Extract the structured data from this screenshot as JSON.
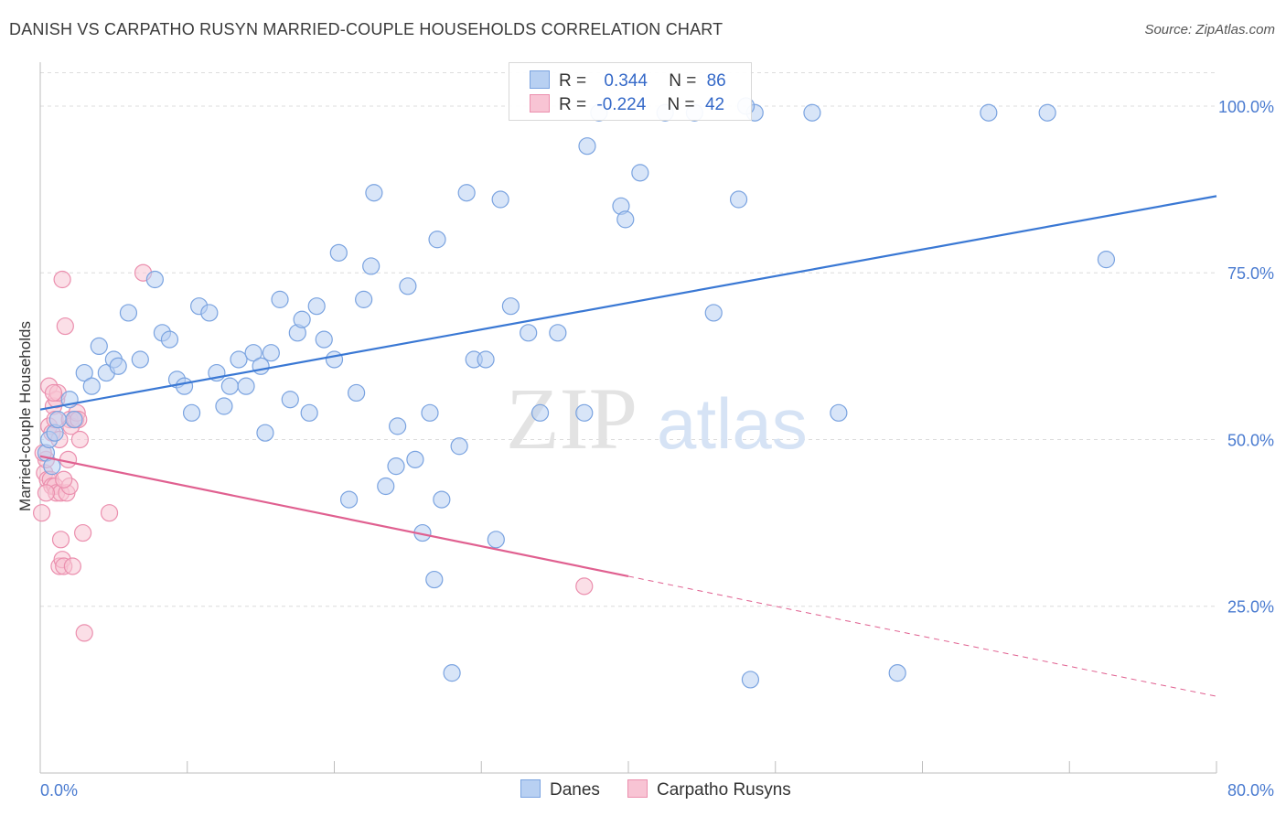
{
  "header": {
    "title": "DANISH VS CARPATHO RUSYN MARRIED-COUPLE HOUSEHOLDS CORRELATION CHART",
    "source": "Source: ZipAtlas.com"
  },
  "watermark": {
    "zip": "ZIP",
    "atlas": "atlas"
  },
  "legend": {
    "rows": [
      {
        "r_label": "R =",
        "r_value": "0.344",
        "n_label": "N =",
        "n_value": "86"
      },
      {
        "r_label": "R =",
        "r_value": "-0.224",
        "n_label": "N =",
        "n_value": "42"
      }
    ]
  },
  "bottom_legend": {
    "danes": "Danes",
    "rusyns": "Carpatho Rusyns"
  },
  "colors": {
    "danes_fill": "#b8d0f2",
    "danes_stroke": "#7aa3e0",
    "danes_line": "#3a78d4",
    "rusyns_fill": "#f8c4d4",
    "rusyns_stroke": "#eb8fae",
    "rusyns_line": "#e06090",
    "grid": "#dcdcdc",
    "tick_text": "#4a7bd0"
  },
  "chart_data": {
    "type": "scatter",
    "title": "DANISH VS CARPATHO RUSYN MARRIED-COUPLE HOUSEHOLDS CORRELATION CHART",
    "xlabel": "",
    "ylabel": "Married-couple Households",
    "xlim": [
      0,
      80
    ],
    "ylim": [
      0,
      105
    ],
    "x_tick_labels": [
      "0.0%",
      "80.0%"
    ],
    "y_ticks": [
      25,
      50,
      75,
      100
    ],
    "y_tick_labels": [
      "25.0%",
      "50.0%",
      "75.0%",
      "100.0%"
    ],
    "grid": true,
    "legend_position": "top-center",
    "series": [
      {
        "name": "Danes",
        "r": 0.344,
        "n": 86,
        "trend": {
          "x0": 0.0,
          "y0": 54.5,
          "x1": 80.0,
          "y1": 86.5
        },
        "points": [
          [
            0.4,
            48
          ],
          [
            0.6,
            50
          ],
          [
            0.8,
            46
          ],
          [
            1.0,
            51
          ],
          [
            1.2,
            53
          ],
          [
            2.0,
            56
          ],
          [
            2.3,
            53
          ],
          [
            3.0,
            60
          ],
          [
            3.5,
            58
          ],
          [
            4.0,
            64
          ],
          [
            4.5,
            60
          ],
          [
            5.0,
            62
          ],
          [
            5.3,
            61
          ],
          [
            6.0,
            69
          ],
          [
            6.8,
            62
          ],
          [
            7.8,
            74
          ],
          [
            8.3,
            66
          ],
          [
            8.8,
            65
          ],
          [
            9.3,
            59
          ],
          [
            9.8,
            58
          ],
          [
            10.3,
            54
          ],
          [
            10.8,
            70
          ],
          [
            11.5,
            69
          ],
          [
            12.0,
            60
          ],
          [
            12.5,
            55
          ],
          [
            12.9,
            58
          ],
          [
            13.5,
            62
          ],
          [
            14.0,
            58
          ],
          [
            14.5,
            63
          ],
          [
            15.0,
            61
          ],
          [
            15.3,
            51
          ],
          [
            15.7,
            63
          ],
          [
            16.3,
            71
          ],
          [
            17.0,
            56
          ],
          [
            17.5,
            66
          ],
          [
            17.8,
            68
          ],
          [
            18.3,
            54
          ],
          [
            18.8,
            70
          ],
          [
            19.3,
            65
          ],
          [
            20.0,
            62
          ],
          [
            20.3,
            78
          ],
          [
            21.0,
            41
          ],
          [
            21.5,
            57
          ],
          [
            22.0,
            71
          ],
          [
            22.5,
            76
          ],
          [
            22.7,
            87
          ],
          [
            23.5,
            43
          ],
          [
            24.2,
            46
          ],
          [
            24.3,
            52
          ],
          [
            25.0,
            73
          ],
          [
            25.5,
            47
          ],
          [
            26.0,
            36
          ],
          [
            26.5,
            54
          ],
          [
            26.8,
            29
          ],
          [
            27.0,
            80
          ],
          [
            27.3,
            41
          ],
          [
            28.0,
            15
          ],
          [
            28.5,
            49
          ],
          [
            29.0,
            87
          ],
          [
            29.5,
            62
          ],
          [
            30.3,
            62
          ],
          [
            31.0,
            35
          ],
          [
            31.3,
            86
          ],
          [
            32.0,
            70
          ],
          [
            33.2,
            66
          ],
          [
            34.0,
            54
          ],
          [
            35.2,
            66
          ],
          [
            37.0,
            54
          ],
          [
            37.2,
            94
          ],
          [
            38.0,
            99
          ],
          [
            39.5,
            85
          ],
          [
            39.8,
            83
          ],
          [
            40.8,
            90
          ],
          [
            42.5,
            99
          ],
          [
            44.5,
            99
          ],
          [
            45.8,
            69
          ],
          [
            47.5,
            86
          ],
          [
            48.3,
            14
          ],
          [
            48.6,
            99
          ],
          [
            52.5,
            99
          ],
          [
            54.3,
            54
          ],
          [
            58.3,
            15
          ],
          [
            64.5,
            99
          ],
          [
            68.5,
            99
          ],
          [
            72.5,
            77
          ],
          [
            48.0,
            100
          ]
        ]
      },
      {
        "name": "Carpatho Rusyns",
        "r": -0.224,
        "n": 42,
        "trend": {
          "x0": 0.0,
          "y0": 47.5,
          "x1": 40.0,
          "y1": 29.5,
          "dash_x1": 80.0,
          "dash_y1": 11.5
        },
        "points": [
          [
            0.1,
            39
          ],
          [
            0.3,
            45
          ],
          [
            0.4,
            47
          ],
          [
            0.5,
            44
          ],
          [
            0.6,
            52
          ],
          [
            0.6,
            58
          ],
          [
            0.7,
            44
          ],
          [
            0.8,
            51
          ],
          [
            0.8,
            43
          ],
          [
            0.9,
            55
          ],
          [
            1.0,
            53
          ],
          [
            1.0,
            43
          ],
          [
            1.1,
            42
          ],
          [
            1.1,
            56
          ],
          [
            1.2,
            57
          ],
          [
            1.3,
            50
          ],
          [
            1.3,
            31
          ],
          [
            1.4,
            42
          ],
          [
            1.4,
            35
          ],
          [
            1.5,
            32
          ],
          [
            1.5,
            74
          ],
          [
            1.6,
            31
          ],
          [
            1.7,
            67
          ],
          [
            1.8,
            42
          ],
          [
            1.9,
            47
          ],
          [
            2.0,
            43
          ],
          [
            2.0,
            53
          ],
          [
            2.1,
            52
          ],
          [
            2.2,
            31
          ],
          [
            2.4,
            53
          ],
          [
            2.5,
            54
          ],
          [
            2.7,
            50
          ],
          [
            2.9,
            36
          ],
          [
            3.0,
            21
          ],
          [
            4.7,
            39
          ],
          [
            7.0,
            75
          ],
          [
            37.0,
            28
          ],
          [
            0.2,
            48
          ],
          [
            0.4,
            42
          ],
          [
            0.9,
            57
          ],
          [
            1.6,
            44
          ],
          [
            2.6,
            53
          ]
        ]
      }
    ]
  }
}
